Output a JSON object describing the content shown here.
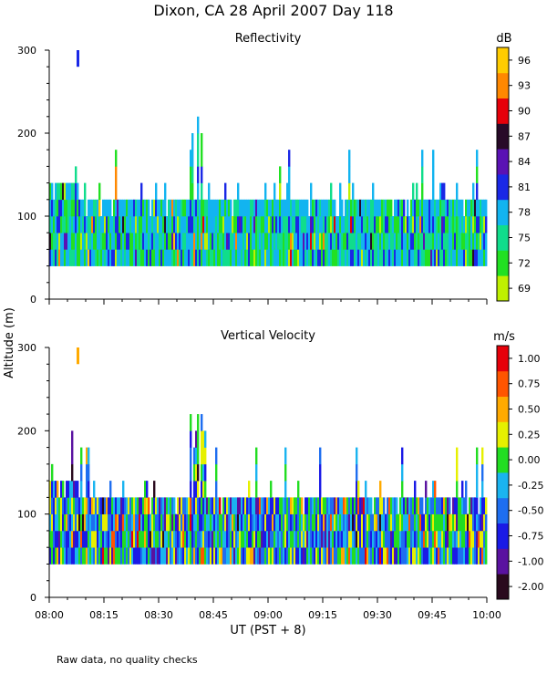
{
  "figure": {
    "title": "Dixon, CA 28 April 2007  Day 118",
    "y_label": "Altitude (m)",
    "x_label": "UT  (PST + 8)",
    "footnote": "Raw data, no quality checks"
  },
  "chart_data": [
    {
      "type": "heatmap",
      "title": "Reflectivity",
      "xlabel": "UT  (PST + 8)",
      "ylabel": "Altitude (m)",
      "x_ticks": [
        "08:00",
        "08:15",
        "08:30",
        "08:45",
        "09:00",
        "09:15",
        "09:30",
        "09:45",
        "10:00"
      ],
      "xlim_minutes": [
        0,
        120
      ],
      "ylim": [
        0,
        300
      ],
      "y_ticks": [
        0,
        100,
        200,
        300
      ],
      "colorbar": {
        "unit": "dB",
        "tick_labels": [
          "69",
          "72",
          "75",
          "78",
          "81",
          "84",
          "87",
          "90",
          "93",
          "96"
        ],
        "colors": [
          "#bff000",
          "#22e022",
          "#10dd8c",
          "#12b4f0",
          "#1a28e6",
          "#5a12b4",
          "#280a28",
          "#e6000a",
          "#ff8800",
          "#ffcc00"
        ],
        "range": [
          68,
          98
        ]
      },
      "data_summary": {
        "echo_base_m": 40,
        "typical_top_m": 120,
        "early_top_m": 140,
        "max_top_m": 220,
        "isolated_return": {
          "time_min": 7.5,
          "alt_range_m": [
            280,
            300
          ],
          "value_db": 81
        }
      }
    },
    {
      "type": "heatmap",
      "title": "Vertical Velocity",
      "xlabel": "UT  (PST + 8)",
      "ylabel": "Altitude (m)",
      "x_ticks": [
        "08:00",
        "08:15",
        "08:30",
        "08:45",
        "09:00",
        "09:15",
        "09:30",
        "09:45",
        "10:00"
      ],
      "xlim_minutes": [
        0,
        120
      ],
      "ylim": [
        0,
        300
      ],
      "y_ticks": [
        0,
        100,
        200,
        300
      ],
      "colorbar": {
        "unit": "m/s",
        "tick_labels": [
          "-2.00",
          "-1.00",
          "-0.75",
          "-0.50",
          "-0.25",
          "0.00",
          "0.25",
          "0.50",
          "0.75",
          "1.00"
        ],
        "colors": [
          "#2a0a1e",
          "#5a12a0",
          "#1a1ae6",
          "#1e6ef0",
          "#1ab4f0",
          "#22dd22",
          "#e6f000",
          "#ffaa00",
          "#ff5500",
          "#e6000a"
        ],
        "range": [
          -2.0,
          1.2
        ]
      },
      "data_summary": {
        "echo_base_m": 40,
        "typical_top_m": 120,
        "early_top_m": 140,
        "max_top_m": 220,
        "isolated_return": {
          "time_min": 7.5,
          "alt_range_m": [
            280,
            300
          ],
          "value_ms": 0.5
        }
      }
    }
  ]
}
